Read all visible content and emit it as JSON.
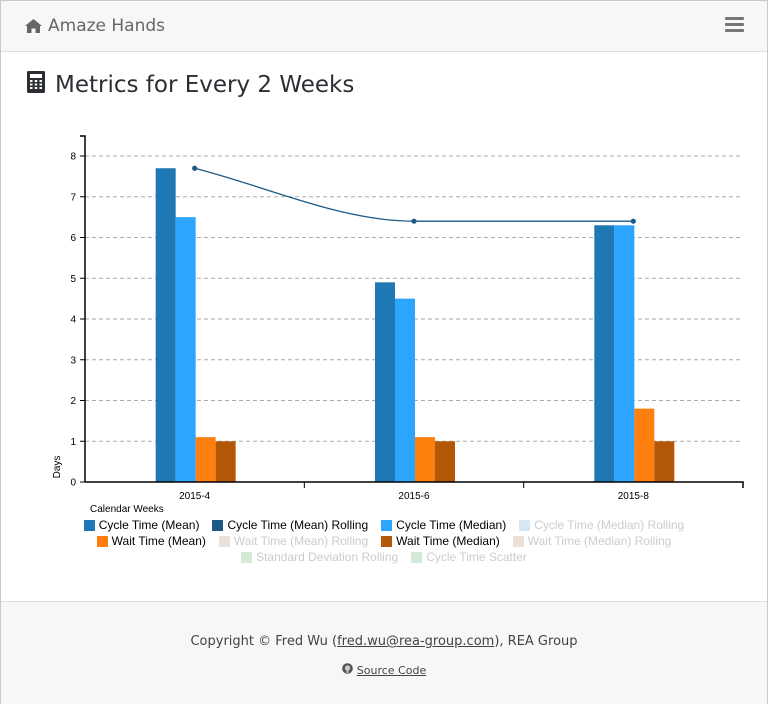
{
  "navbar": {
    "brand": "Amaze Hands",
    "brand_icon": "home-icon",
    "menu_icon": "hamburger-menu-icon"
  },
  "page": {
    "title": "Metrics for Every 2 Weeks",
    "title_icon": "calculator-icon"
  },
  "chart_data": {
    "type": "bar",
    "title": "",
    "xlabel": "Calendar Weeks",
    "ylabel": "Days",
    "ylim": [
      0,
      8.5
    ],
    "yticks": [
      "0",
      "1",
      "2",
      "3",
      "4",
      "5",
      "6",
      "7",
      "8"
    ],
    "grid": true,
    "legend_position": "bottom",
    "categories": [
      "2015-4",
      "2015-6",
      "2015-8"
    ],
    "series": [
      {
        "name": "Cycle Time (Mean)",
        "type": "bar",
        "color": "#1f77b4",
        "values": [
          7.7,
          4.9,
          6.3
        ],
        "visible": true
      },
      {
        "name": "Cycle Time (Median)",
        "type": "bar",
        "color": "#2ca5ff",
        "values": [
          6.5,
          4.5,
          6.3
        ],
        "visible": true
      },
      {
        "name": "Wait Time (Mean)",
        "type": "bar",
        "color": "#ff7f0e",
        "values": [
          1.1,
          1.1,
          1.8
        ],
        "visible": true
      },
      {
        "name": "Wait Time (Median)",
        "type": "bar",
        "color": "#b35806",
        "values": [
          1.0,
          1.0,
          1.0
        ],
        "visible": true
      },
      {
        "name": "Cycle Time (Mean) Rolling",
        "type": "line",
        "color": "#1b5a87",
        "values": [
          7.7,
          6.4,
          6.4
        ],
        "visible": true
      }
    ],
    "legend": [
      [
        {
          "name": "Cycle Time (Mean)",
          "color": "#1f77b4",
          "enabled": true
        },
        {
          "name": "Cycle Time (Mean) Rolling",
          "color": "#1b5a87",
          "enabled": true
        },
        {
          "name": "Cycle Time (Median)",
          "color": "#2ca5ff",
          "enabled": true
        },
        {
          "name": "Cycle Time (Median) Rolling",
          "color": "#d6e6f2",
          "enabled": false
        }
      ],
      [
        {
          "name": "Wait Time (Mean)",
          "color": "#ff7f0e",
          "enabled": true
        },
        {
          "name": "Wait Time (Mean) Rolling",
          "color": "#ede0d9",
          "enabled": false
        },
        {
          "name": "Wait Time (Median)",
          "color": "#b35806",
          "enabled": true
        },
        {
          "name": "Wait Time (Median) Rolling",
          "color": "#ede0d9",
          "enabled": false
        }
      ],
      [
        {
          "name": "Standard Deviation Rolling",
          "color": "#d5ead5",
          "enabled": false
        },
        {
          "name": "Cycle Time Scatter",
          "color": "#d5ead5",
          "enabled": false
        }
      ]
    ]
  },
  "footer": {
    "copyright_prefix": "Copyright © Fred Wu (",
    "email": "fred.wu@rea-group.com",
    "copyright_suffix": "), REA Group",
    "source_icon": "github-icon",
    "source_label": "Source Code"
  }
}
